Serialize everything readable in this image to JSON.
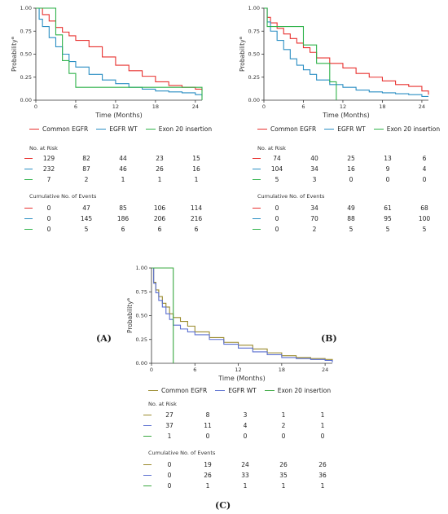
{
  "colors": {
    "common": "#e8312f",
    "wt": "#2a8ec3",
    "exon20": "#2fb24a",
    "c_common": "#9a8a2c",
    "c_wt": "#5a6fd0",
    "c_exon20": "#3aa840"
  },
  "panel_labels": [
    "(A)",
    "(B)",
    "(C)"
  ],
  "chart_data": [
    {
      "type": "line",
      "panel": "A",
      "step": true,
      "xlabel": "Time (Months)",
      "ylabel": "Probability",
      "ylabel_sup": "a",
      "xlim": [
        0,
        25
      ],
      "ylim": [
        0,
        1
      ],
      "xticks": [
        "0",
        "6",
        "12",
        "18",
        "24"
      ],
      "yticks": [
        "0.00",
        "0.25",
        "0.50",
        "0.75",
        "1.00"
      ],
      "series": [
        {
          "name": "Common EGFR",
          "x": [
            0,
            1,
            2,
            3,
            4,
            5,
            6,
            8,
            10,
            12,
            14,
            16,
            18,
            20,
            22,
            24,
            25
          ],
          "y": [
            1.0,
            0.93,
            0.86,
            0.79,
            0.74,
            0.7,
            0.65,
            0.58,
            0.47,
            0.38,
            0.32,
            0.26,
            0.2,
            0.16,
            0.14,
            0.12,
            0.1
          ]
        },
        {
          "name": "EGFR WT",
          "x": [
            0,
            0.5,
            1,
            2,
            3,
            4,
            5,
            6,
            8,
            10,
            12,
            14,
            16,
            18,
            20,
            22,
            24,
            25
          ],
          "y": [
            1.0,
            0.88,
            0.8,
            0.68,
            0.58,
            0.5,
            0.42,
            0.36,
            0.28,
            0.22,
            0.18,
            0.14,
            0.12,
            0.1,
            0.09,
            0.08,
            0.06,
            0.04
          ]
        },
        {
          "name": "Exon 20 insertion",
          "x": [
            0,
            3,
            4,
            5,
            6,
            24,
            25
          ],
          "y": [
            1.0,
            0.71,
            0.43,
            0.29,
            0.14,
            0.14,
            0.0
          ]
        }
      ],
      "risk_table": {
        "title": "No. at Risk",
        "rows": [
          [
            "129",
            "82",
            "44",
            "23",
            "15"
          ],
          [
            "232",
            "87",
            "46",
            "26",
            "16"
          ],
          [
            "7",
            "2",
            "1",
            "1",
            "1"
          ]
        ]
      },
      "events_table": {
        "title": "Cumulative No. of Events",
        "rows": [
          [
            "0",
            "47",
            "85",
            "106",
            "114"
          ],
          [
            "0",
            "145",
            "186",
            "206",
            "216"
          ],
          [
            "0",
            "5",
            "6",
            "6",
            "6"
          ]
        ]
      }
    },
    {
      "type": "line",
      "panel": "B",
      "step": true,
      "xlabel": "Time (Months)",
      "ylabel": "Probability",
      "ylabel_sup": "a",
      "xlim": [
        0,
        25
      ],
      "ylim": [
        0,
        1
      ],
      "xticks": [
        "0",
        "6",
        "12",
        "18",
        "24"
      ],
      "yticks": [
        "0.00",
        "0.25",
        "0.50",
        "0.75",
        "1.00"
      ],
      "series": [
        {
          "name": "Common EGFR",
          "x": [
            0,
            0.5,
            1,
            2,
            3,
            4,
            5,
            6,
            7,
            8,
            10,
            12,
            14,
            16,
            18,
            20,
            22,
            24,
            25
          ],
          "y": [
            1.0,
            0.9,
            0.84,
            0.78,
            0.72,
            0.67,
            0.62,
            0.57,
            0.52,
            0.46,
            0.4,
            0.35,
            0.29,
            0.25,
            0.21,
            0.17,
            0.15,
            0.1,
            0.06
          ]
        },
        {
          "name": "EGFR WT",
          "x": [
            0,
            0.5,
            1,
            2,
            3,
            4,
            5,
            6,
            7,
            8,
            10,
            12,
            14,
            16,
            18,
            20,
            22,
            24,
            25
          ],
          "y": [
            1.0,
            0.85,
            0.75,
            0.65,
            0.55,
            0.45,
            0.38,
            0.33,
            0.28,
            0.22,
            0.17,
            0.14,
            0.11,
            0.09,
            0.08,
            0.07,
            0.06,
            0.04,
            0.04
          ]
        },
        {
          "name": "Exon 20 insertion",
          "x": [
            0,
            0.5,
            6,
            8,
            10,
            11
          ],
          "y": [
            1.0,
            0.8,
            0.6,
            0.4,
            0.2,
            0.0
          ]
        }
      ],
      "risk_table": {
        "title": "No. at Risk",
        "rows": [
          [
            "74",
            "40",
            "25",
            "13",
            "6"
          ],
          [
            "104",
            "34",
            "16",
            "9",
            "4"
          ],
          [
            "5",
            "3",
            "0",
            "0",
            "0"
          ]
        ]
      },
      "events_table": {
        "title": "Cumulative No. of Events",
        "rows": [
          [
            "0",
            "34",
            "49",
            "61",
            "68"
          ],
          [
            "0",
            "70",
            "88",
            "95",
            "100"
          ],
          [
            "0",
            "2",
            "5",
            "5",
            "5"
          ]
        ]
      }
    },
    {
      "type": "line",
      "panel": "C",
      "step": true,
      "xlabel": "Time (Months)",
      "ylabel": "Probability",
      "ylabel_sup": "a",
      "xlim": [
        0,
        25
      ],
      "ylim": [
        0,
        1
      ],
      "xticks": [
        "0",
        "6",
        "12",
        "18",
        "24"
      ],
      "yticks": [
        "0.00",
        "0.25",
        "0.50",
        "0.75",
        "1.00"
      ],
      "series": [
        {
          "name": "Common EGFR",
          "x": [
            0,
            0.3,
            0.6,
            1,
            1.5,
            2,
            2.5,
            3,
            4,
            5,
            6,
            8,
            10,
            12,
            14,
            16,
            18,
            20,
            22,
            24,
            25
          ],
          "y": [
            1.0,
            0.85,
            0.77,
            0.7,
            0.63,
            0.59,
            0.52,
            0.48,
            0.44,
            0.39,
            0.33,
            0.27,
            0.22,
            0.19,
            0.15,
            0.11,
            0.08,
            0.06,
            0.05,
            0.04,
            0.02
          ]
        },
        {
          "name": "EGFR WT",
          "x": [
            0,
            0.3,
            0.6,
            1,
            1.5,
            2,
            2.5,
            3,
            4,
            5,
            6,
            8,
            10,
            12,
            14,
            16,
            18,
            20,
            22,
            24,
            25
          ],
          "y": [
            1.0,
            0.84,
            0.74,
            0.66,
            0.59,
            0.52,
            0.46,
            0.4,
            0.36,
            0.33,
            0.3,
            0.25,
            0.2,
            0.16,
            0.12,
            0.09,
            0.06,
            0.05,
            0.04,
            0.03,
            0.01
          ]
        },
        {
          "name": "Exon 20 insertion",
          "x": [
            0,
            3,
            3.01
          ],
          "y": [
            1.0,
            1.0,
            0.0
          ]
        }
      ],
      "risk_table": {
        "title": "No. at Risk",
        "rows": [
          [
            "27",
            "8",
            "3",
            "1",
            "1"
          ],
          [
            "37",
            "11",
            "4",
            "2",
            "1"
          ],
          [
            "1",
            "0",
            "0",
            "0",
            "0"
          ]
        ]
      },
      "events_table": {
        "title": "Cumulative No. of Events",
        "rows": [
          [
            "0",
            "19",
            "24",
            "26",
            "26"
          ],
          [
            "0",
            "26",
            "33",
            "35",
            "36"
          ],
          [
            "0",
            "1",
            "1",
            "1",
            "1"
          ]
        ]
      }
    }
  ]
}
